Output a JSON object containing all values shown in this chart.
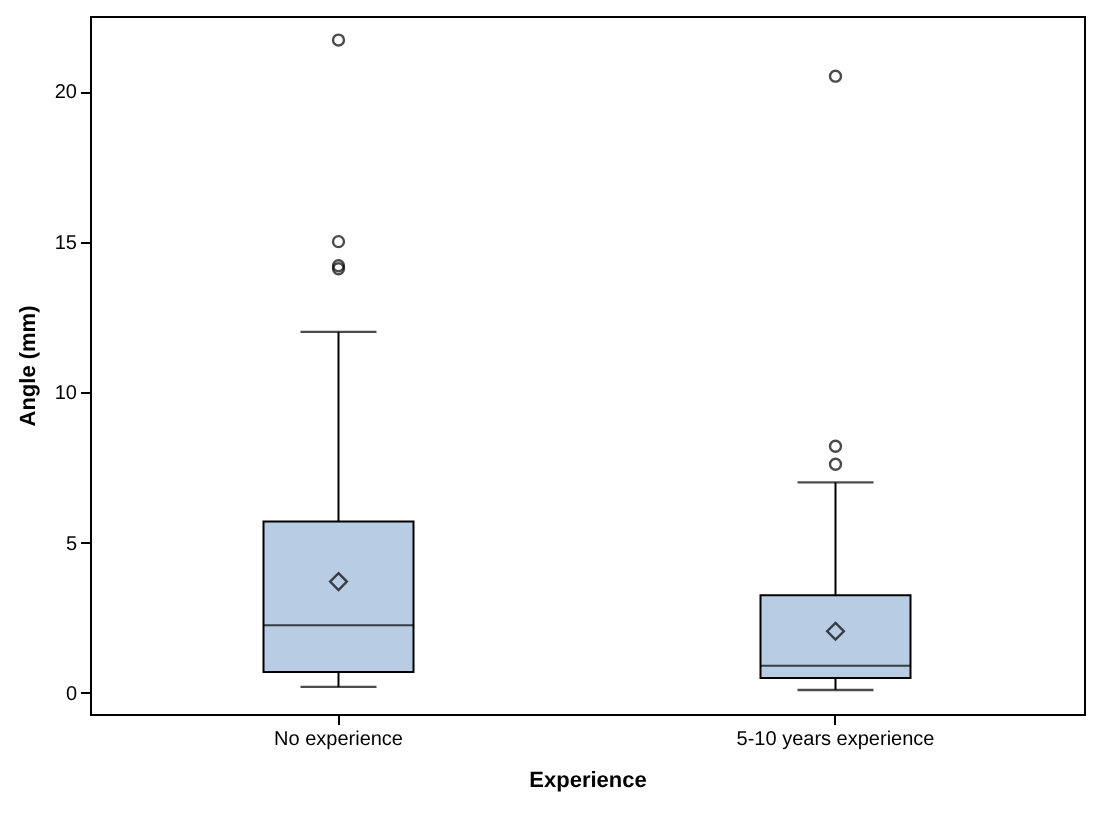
{
  "chart_data": {
    "type": "box",
    "xlabel": "Experience",
    "ylabel": "Angle (mm)",
    "categories": [
      "No experience",
      "5-10 years experience"
    ],
    "color": "#b8cce4",
    "boxes": [
      {
        "low": 0.2,
        "q1": 0.7,
        "median": 2.25,
        "q3": 5.7,
        "high": 12.0,
        "mean": 3.7,
        "outliers": [
          14.1,
          14.2,
          15.0,
          21.7
        ]
      },
      {
        "low": 0.1,
        "q1": 0.5,
        "median": 0.9,
        "q3": 3.25,
        "high": 7.0,
        "mean": 2.05,
        "outliers": [
          7.6,
          8.2,
          20.5
        ]
      }
    ],
    "ylim": [
      -0.7,
      22.5
    ],
    "yticks": [
      0,
      5,
      10,
      15,
      20
    ],
    "grid": false
  }
}
